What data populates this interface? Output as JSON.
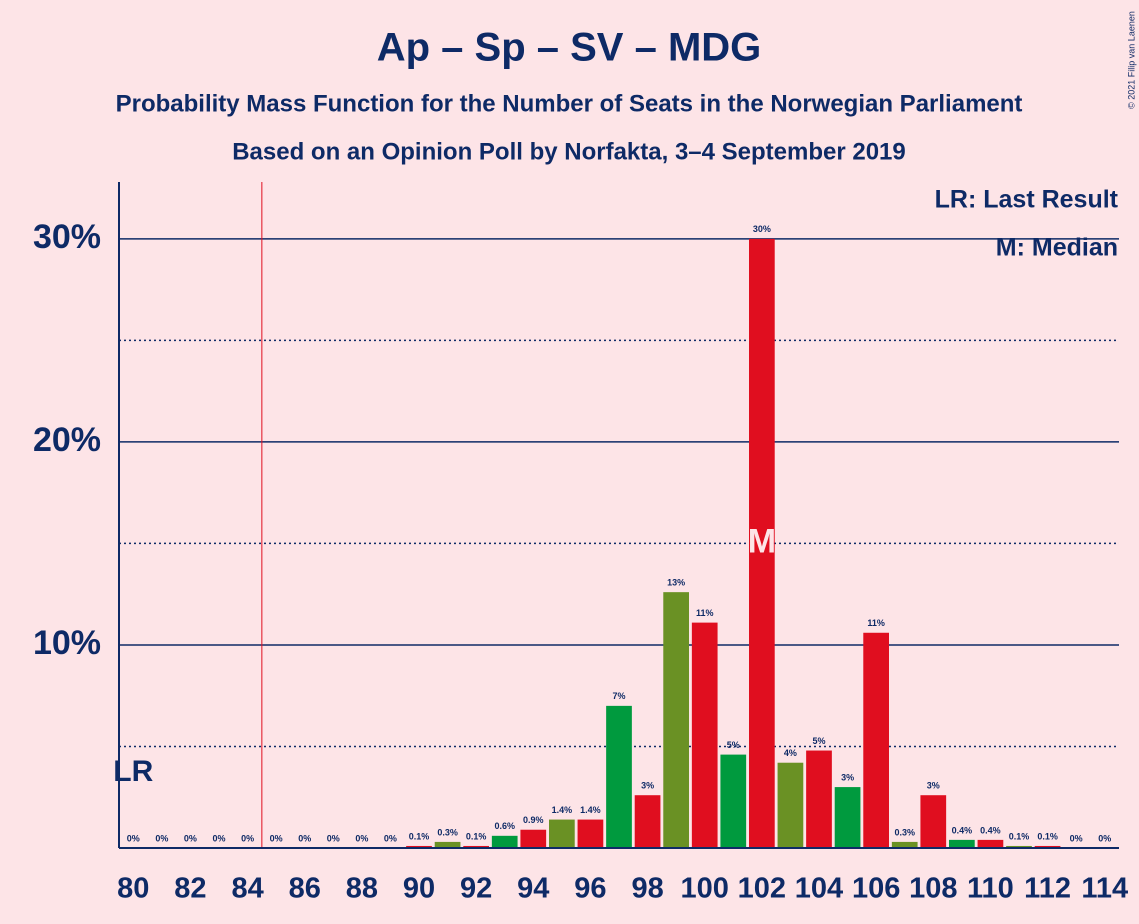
{
  "chart_data": {
    "type": "bar",
    "title": "Ap – Sp – SV – MDG",
    "subtitle": "Probability Mass Function for the Number of Seats in the Norwegian Parliament",
    "subtitle2": "Based on an Opinion Poll by Norfakta, 3–4 September 2019",
    "copyright": "© 2021 Filip van Laenen",
    "x": [
      80,
      81,
      82,
      83,
      84,
      85,
      86,
      87,
      88,
      89,
      90,
      91,
      92,
      93,
      94,
      95,
      96,
      97,
      98,
      99,
      100,
      101,
      102,
      103,
      104,
      105,
      106,
      107,
      108,
      109,
      110,
      111,
      112,
      113,
      114
    ],
    "values": [
      0,
      0,
      0,
      0,
      0,
      0,
      0,
      0,
      0,
      0,
      0.1,
      0.3,
      0.1,
      0.6,
      0.9,
      1.4,
      1.4,
      7.0,
      2.6,
      12.6,
      11.1,
      4.6,
      30.0,
      4.2,
      4.8,
      3.0,
      10.6,
      0.3,
      2.6,
      0.4,
      0.4,
      0.1,
      0.1,
      0,
      0
    ],
    "value_labels": [
      "0%",
      "0%",
      "0%",
      "0%",
      "0%",
      "0%",
      "0%",
      "0%",
      "0%",
      "0%",
      "0.1%",
      "0.3%",
      "0.1%",
      "0.6%",
      "0.9%",
      "1.4%",
      "1.4%",
      "7%",
      "3%",
      "13%",
      "11%",
      "5%",
      "30%",
      "4%",
      "5%",
      "3%",
      "11%",
      "0.3%",
      "3%",
      "0.4%",
      "0.4%",
      "0.1%",
      "0.1%",
      "0%",
      "0%"
    ],
    "colors": [
      "#e00e1f",
      "#009a3e",
      "#e00e1f",
      "#6a9124",
      "#e00e1f",
      "#009a3e",
      "#e00e1f",
      "#6a9124",
      "#e00e1f",
      "#009a3e",
      "#e00e1f",
      "#6a9124",
      "#e00e1f",
      "#009a3e",
      "#e00e1f",
      "#6a9124",
      "#e00e1f",
      "#009a3e",
      "#e00e1f",
      "#6a9124",
      "#e00e1f",
      "#009a3e",
      "#e00e1f",
      "#6a9124",
      "#e00e1f",
      "#009a3e",
      "#e00e1f",
      "#6a9124",
      "#e00e1f",
      "#009a3e",
      "#e00e1f",
      "#6a9124",
      "#e00e1f",
      "#009a3e",
      "#e00e1f"
    ],
    "xlim": [
      79.5,
      114.5
    ],
    "xticks": [
      80,
      82,
      84,
      86,
      88,
      90,
      92,
      94,
      96,
      98,
      100,
      102,
      104,
      106,
      108,
      110,
      112,
      114
    ],
    "ylim": [
      0,
      32.8
    ],
    "yticks": [
      {
        "value": 10,
        "label": "10%"
      },
      {
        "value": 20,
        "label": "20%"
      },
      {
        "value": 30,
        "label": "30%"
      }
    ],
    "minor_yticks": [
      5,
      15,
      25
    ],
    "majority": 85,
    "last_result": {
      "x": 80,
      "label": "LR"
    },
    "median": {
      "x": 102,
      "label": "M"
    },
    "legend": [
      "LR: Last Result",
      "M: Median"
    ]
  }
}
